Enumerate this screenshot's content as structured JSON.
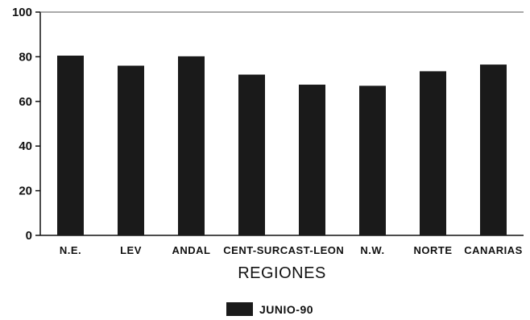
{
  "chart_data": {
    "type": "bar",
    "categories": [
      "N.E.",
      "LEV",
      "ANDAL",
      "CENT-SUR",
      "CAST-LEON",
      "N.W.",
      "NORTE",
      "CANARIAS"
    ],
    "series": [
      {
        "name": "JUNIO-90",
        "values": [
          80.5,
          76,
          80.2,
          72,
          67.5,
          67,
          73.5,
          76.5
        ]
      }
    ],
    "title": "",
    "xlabel": "REGIONES",
    "ylabel": "",
    "ylim": [
      0,
      100
    ],
    "yticks": [
      0,
      20,
      40,
      60,
      80,
      100
    ],
    "grid": false,
    "legend_position": "bottom-center",
    "bar_color": "#1a1a1a"
  }
}
